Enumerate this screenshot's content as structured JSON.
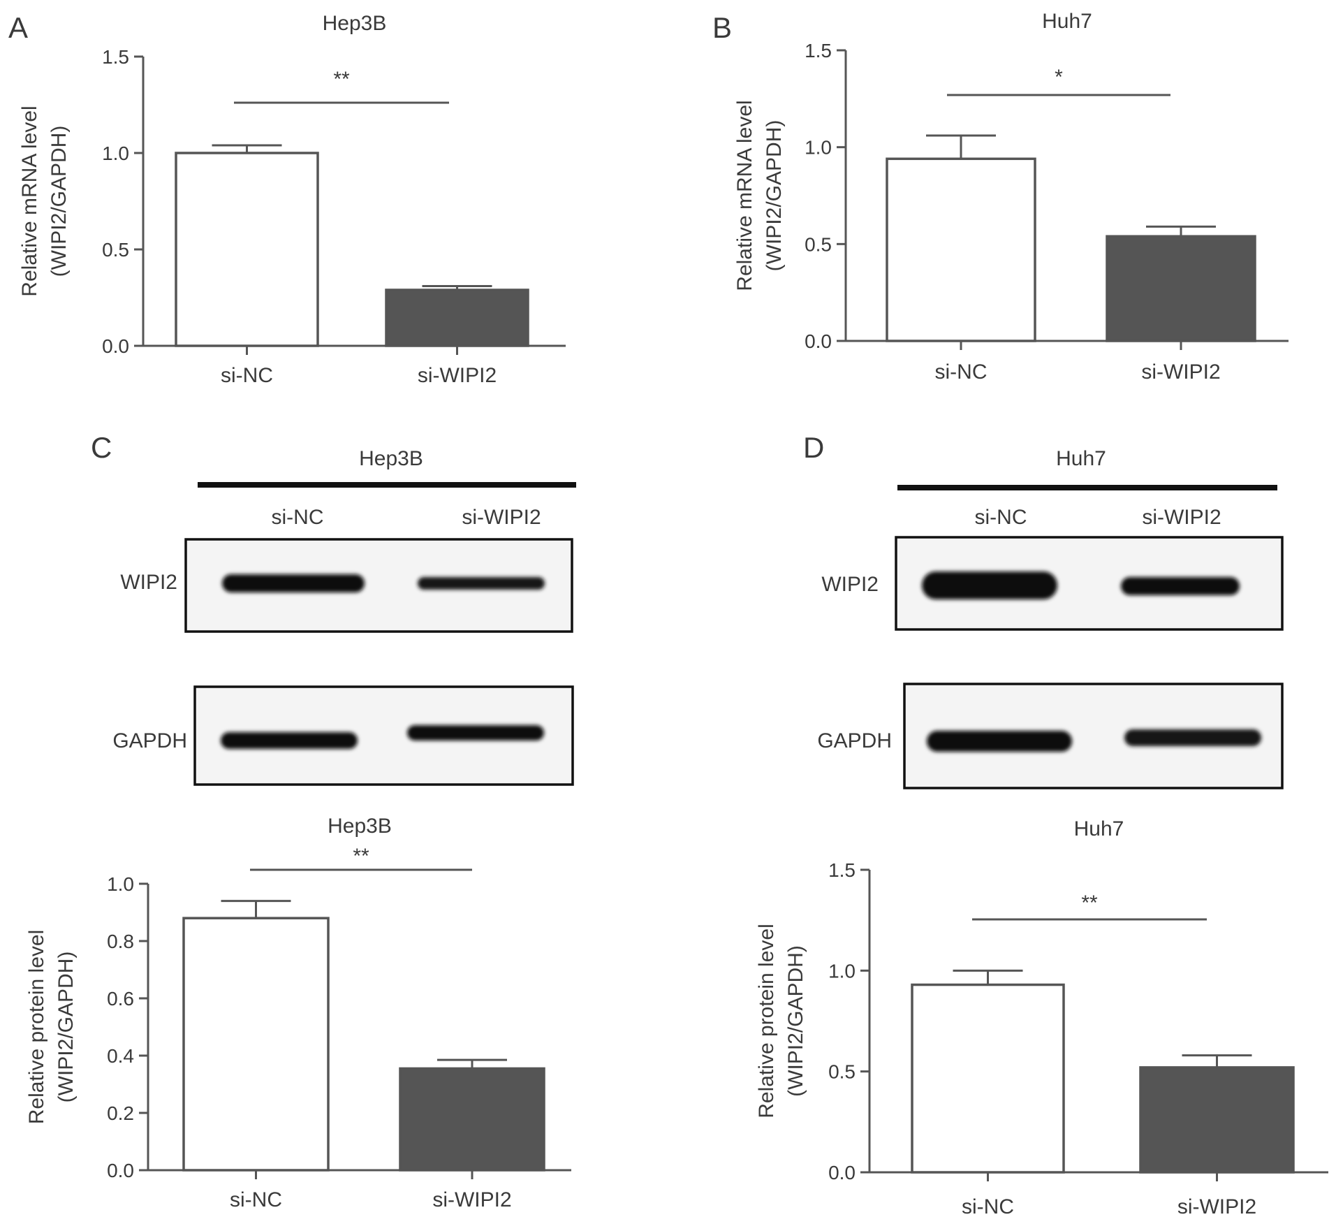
{
  "panels": {
    "A": {
      "letter": "A"
    },
    "B": {
      "letter": "B"
    },
    "C": {
      "letter": "C",
      "cell_line": "Hep3B",
      "lanes": [
        "si-NC",
        "si-WIPI2"
      ],
      "rows": [
        "WIPI2",
        "GAPDH"
      ]
    },
    "D": {
      "letter": "D",
      "cell_line": "Huh7",
      "lanes": [
        "si-NC",
        "si-WIPI2"
      ],
      "rows": [
        "WIPI2",
        "GAPDH"
      ]
    }
  },
  "colors": {
    "control_fill": "#ffffff",
    "knockdown_fill": "#555555",
    "axis": "#555555"
  },
  "chart_data": [
    {
      "id": "A",
      "type": "bar",
      "title": "Hep3B",
      "categories": [
        "si-NC",
        "si-WIPI2"
      ],
      "values": [
        1.0,
        0.29
      ],
      "errors": [
        0.04,
        0.02
      ],
      "ylabel": [
        "Relative mRNA level",
        "(WIPI2/GAPDH)"
      ],
      "ylim": [
        0,
        1.5
      ],
      "yticks": [
        "0.0",
        "0.5",
        "1.0",
        "1.5"
      ],
      "ytick_values": [
        0,
        0.5,
        1.0,
        1.5
      ],
      "significance": "**"
    },
    {
      "id": "B",
      "type": "bar",
      "title": "Huh7",
      "categories": [
        "si-NC",
        "si-WIPI2"
      ],
      "values": [
        0.94,
        0.54
      ],
      "errors": [
        0.12,
        0.05
      ],
      "ylabel": [
        "Relative mRNA level",
        "(WIPI2/GAPDH)"
      ],
      "ylim": [
        0,
        1.5
      ],
      "yticks": [
        "0.0",
        "0.5",
        "1.0",
        "1.5"
      ],
      "ytick_values": [
        0,
        0.5,
        1.0,
        1.5
      ],
      "significance": "*"
    },
    {
      "id": "C",
      "type": "bar",
      "title": "Hep3B",
      "categories": [
        "si-NC",
        "si-WIPI2"
      ],
      "values": [
        0.88,
        0.355
      ],
      "errors": [
        0.06,
        0.03
      ],
      "ylabel": [
        "Relative protein level",
        "(WIPI2/GAPDH)"
      ],
      "ylim": [
        0,
        1.0
      ],
      "yticks": [
        "0.0",
        "0.2",
        "0.4",
        "0.6",
        "0.8",
        "1.0"
      ],
      "ytick_values": [
        0,
        0.2,
        0.4,
        0.6,
        0.8,
        1.0
      ],
      "significance": "**"
    },
    {
      "id": "D",
      "type": "bar",
      "title": "Huh7",
      "categories": [
        "si-NC",
        "si-WIPI2"
      ],
      "values": [
        0.93,
        0.52
      ],
      "errors": [
        0.07,
        0.06
      ],
      "ylabel": [
        "Relative protein level",
        "(WIPI2/GAPDH)"
      ],
      "ylim": [
        0,
        1.5
      ],
      "yticks": [
        "0.0",
        "0.5",
        "1.0",
        "1.5"
      ],
      "ytick_values": [
        0,
        0.5,
        1.0,
        1.5
      ],
      "significance": "**"
    }
  ]
}
